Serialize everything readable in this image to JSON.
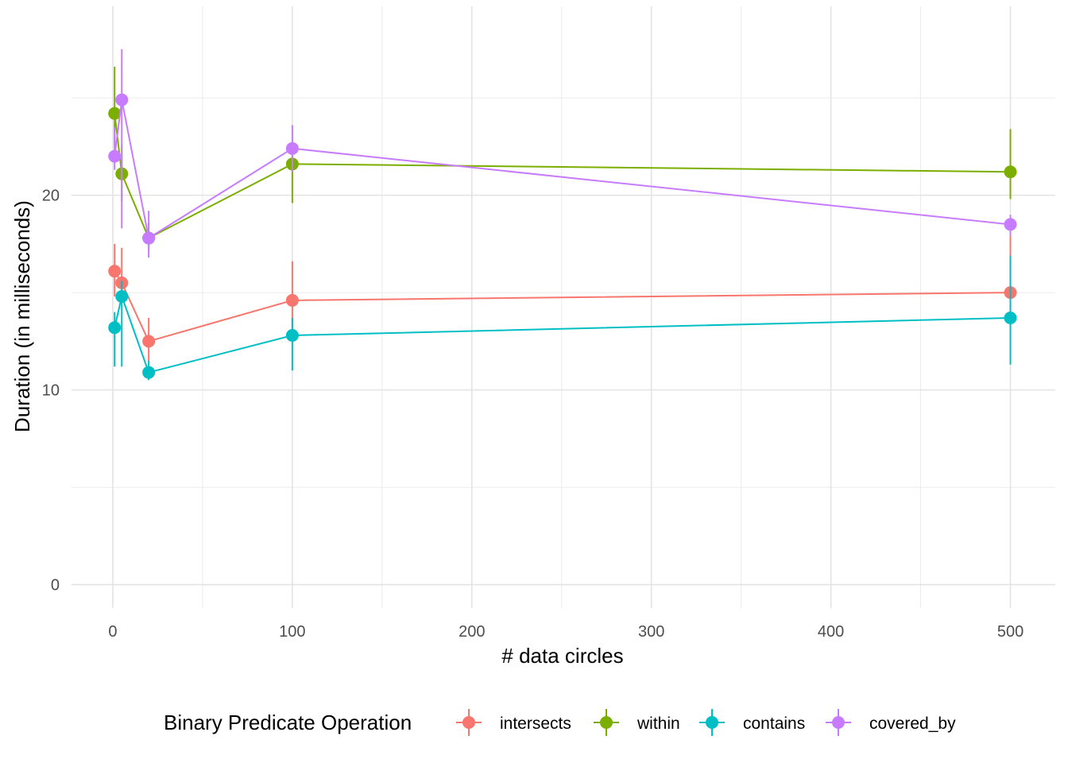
{
  "chart_data": {
    "type": "line",
    "title": "",
    "xlabel": "# data circles",
    "ylabel": "Duration (in milliseconds)",
    "xlim": [
      -23,
      525
    ],
    "ylim": [
      -1.2,
      29.7
    ],
    "x_ticks": [
      0,
      100,
      200,
      300,
      400,
      500
    ],
    "y_ticks": [
      0,
      10,
      20
    ],
    "x_minor_ticks": [
      50,
      150,
      250,
      350,
      450
    ],
    "y_minor_ticks": [
      5,
      15,
      25
    ],
    "grid": true,
    "legend": {
      "title": "Binary Predicate Operation",
      "position": "bottom"
    },
    "series": [
      {
        "name": "intersects",
        "color": "#F8766D",
        "x": [
          1,
          5,
          20,
          100,
          500
        ],
        "y": [
          16.1,
          15.5,
          12.5,
          14.6,
          15.0
        ],
        "ymin": [
          14.8,
          14.5,
          11.4,
          12.8,
          14.0
        ],
        "ymax": [
          17.5,
          17.3,
          13.7,
          16.6,
          17.9
        ]
      },
      {
        "name": "within",
        "color": "#7CAE00",
        "x": [
          1,
          5,
          20,
          100,
          500
        ],
        "y": [
          24.2,
          21.1,
          17.8,
          21.6,
          21.2
        ],
        "ymin": [
          22.5,
          19.7,
          17.2,
          19.6,
          19.8
        ],
        "ymax": [
          26.6,
          22.6,
          18.6,
          22.5,
          23.4
        ]
      },
      {
        "name": "contains",
        "color": "#00BFC4",
        "x": [
          1,
          5,
          20,
          100,
          500
        ],
        "y": [
          13.2,
          14.8,
          10.9,
          12.8,
          13.7
        ],
        "ymin": [
          11.2,
          11.2,
          10.5,
          11.0,
          11.3
        ],
        "ymax": [
          14.0,
          15.6,
          11.5,
          13.7,
          16.9
        ]
      },
      {
        "name": "covered_by",
        "color": "#C77CFF",
        "x": [
          1,
          5,
          20,
          100,
          500
        ],
        "y": [
          22.0,
          24.9,
          17.8,
          22.4,
          18.5
        ],
        "ymin": [
          21.3,
          18.3,
          16.8,
          21.2,
          17.9
        ],
        "ymax": [
          23.5,
          27.5,
          19.2,
          23.6,
          19.0
        ]
      }
    ]
  }
}
